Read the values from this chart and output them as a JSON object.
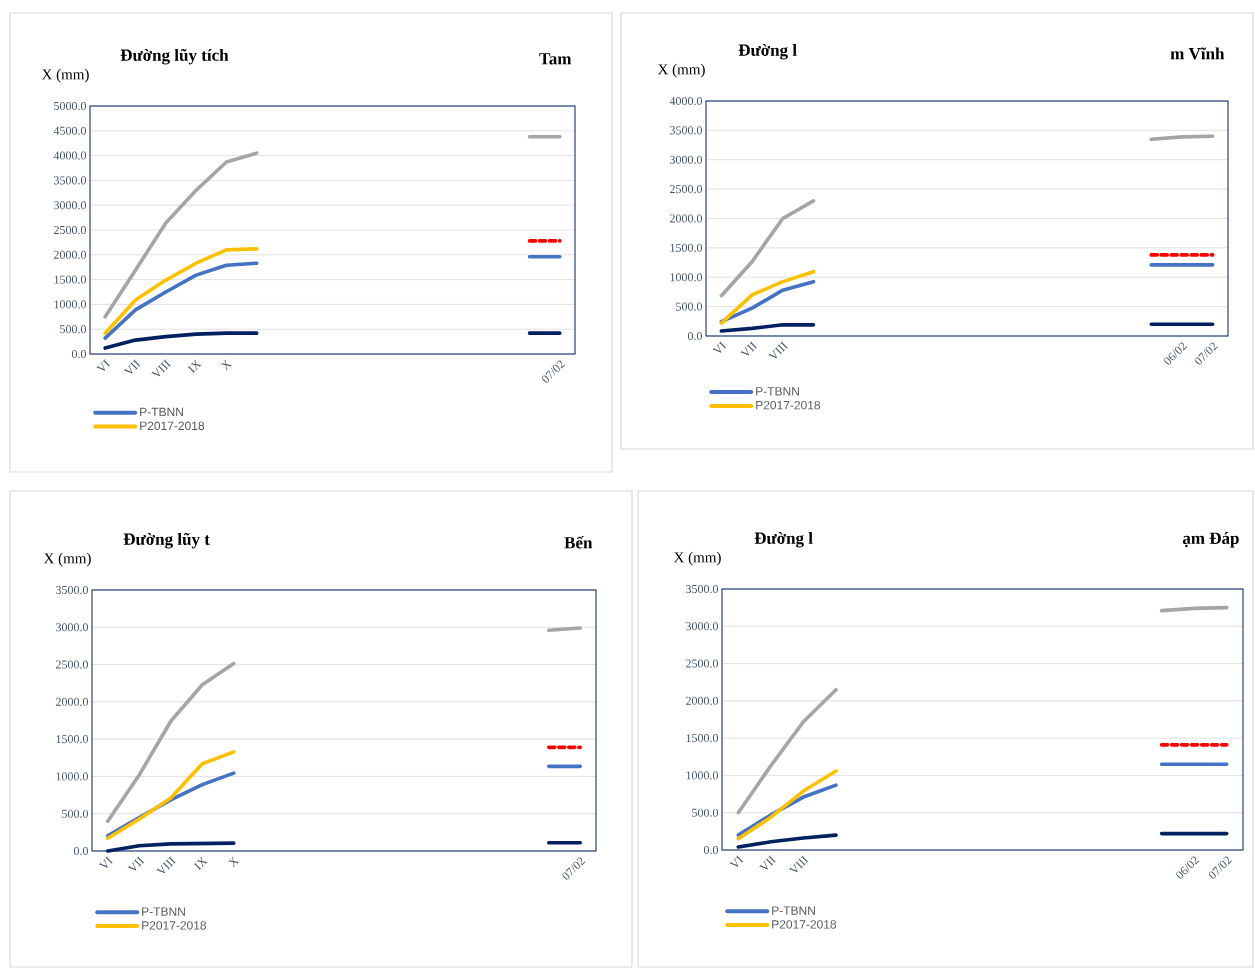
{
  "chart_data": [
    {
      "type": "line",
      "title": "Đường lũy tích",
      "ylabel": "X (mm)",
      "annotations": [
        "Tam"
      ],
      "categories": [
        "VI",
        "VII",
        "VIII",
        "IX",
        "X",
        null,
        null,
        null,
        null,
        null,
        null,
        null,
        null,
        null,
        null,
        "07/02"
      ],
      "series": [
        {
          "name": "P-TBNN",
          "color": "#4472c4",
          "values": [
            320,
            890,
            1250,
            1590,
            1790,
            1830,
            null,
            null,
            null,
            null,
            null,
            null,
            null,
            null,
            1960,
            1960
          ]
        },
        {
          "color": "#a5a5a5",
          "values": [
            750,
            1690,
            2640,
            3300,
            3870,
            4050,
            null,
            null,
            null,
            null,
            null,
            null,
            null,
            null,
            4380,
            4380
          ]
        },
        {
          "name": "P2017-2018",
          "color": "#ffc000",
          "values": [
            420,
            1090,
            1490,
            1830,
            2100,
            2120,
            null,
            null,
            null,
            null,
            null,
            null,
            null,
            null,
            null,
            null
          ]
        },
        {
          "color": "#ff0000",
          "line_style": "dashed",
          "values": [
            null,
            null,
            null,
            null,
            null,
            null,
            null,
            null,
            null,
            null,
            null,
            null,
            null,
            null,
            2280,
            2280
          ]
        },
        {
          "color": "#002060",
          "values": [
            120,
            280,
            350,
            400,
            420,
            420,
            null,
            null,
            null,
            null,
            null,
            null,
            null,
            null,
            420,
            420
          ]
        }
      ],
      "ylim": [
        0,
        5000
      ],
      "yticks": [
        {
          "value": 0,
          "label": "0.0"
        },
        {
          "value": 500,
          "label": "500.0"
        },
        {
          "value": 1000,
          "label": "1000.0"
        },
        {
          "value": 1500,
          "label": "1500.0"
        },
        {
          "value": 2000,
          "label": "2000.0"
        },
        {
          "value": 2500,
          "label": "2500.0"
        },
        {
          "value": 3000,
          "label": "3000.0"
        },
        {
          "value": 3500,
          "label": "3500.0"
        },
        {
          "value": 4000,
          "label": "4000.0"
        },
        {
          "value": 4500,
          "label": "4500.0"
        },
        {
          "value": 5000,
          "label": "5000.0"
        }
      ],
      "grid": "y",
      "legend": "bottom"
    },
    {
      "type": "line",
      "title": "Đường l",
      "ylabel": "X (mm)",
      "annotations": [
        "m Vĩnh"
      ],
      "categories": [
        "VI",
        "VII",
        "VIII",
        null,
        null,
        null,
        null,
        null,
        null,
        null,
        null,
        null,
        null,
        null,
        null,
        "06/02",
        "07/02"
      ],
      "series": [
        {
          "name": "P-TBNN",
          "color": "#4472c4",
          "values": [
            245,
            475,
            780,
            925,
            null,
            null,
            null,
            null,
            null,
            null,
            null,
            null,
            null,
            null,
            1210,
            1210,
            1210
          ]
        },
        {
          "color": "#a5a5a5",
          "values": [
            686,
            1265,
            2000,
            2300,
            null,
            null,
            null,
            null,
            null,
            null,
            null,
            null,
            null,
            null,
            3350,
            3390,
            3400
          ]
        },
        {
          "name": "P2017-2018",
          "color": "#ffc000",
          "values": [
            220,
            700,
            925,
            1095,
            null,
            null,
            null,
            null,
            null,
            null,
            null,
            null,
            null,
            null,
            null,
            null,
            null
          ]
        },
        {
          "color": "#ff0000",
          "line_style": "dashed",
          "values": [
            null,
            null,
            null,
            null,
            null,
            null,
            null,
            null,
            null,
            null,
            null,
            null,
            null,
            null,
            1380,
            1380,
            1380
          ]
        },
        {
          "color": "#002060",
          "values": [
            85,
            130,
            190,
            190,
            null,
            null,
            null,
            null,
            null,
            null,
            null,
            null,
            null,
            null,
            200,
            200,
            200
          ]
        }
      ],
      "ylim": [
        0,
        4000
      ],
      "yticks": [
        {
          "value": 0,
          "label": "0.0"
        },
        {
          "value": 500,
          "label": "500.0"
        },
        {
          "value": 1000,
          "label": "1000.0"
        },
        {
          "value": 1500,
          "label": "1500.0"
        },
        {
          "value": 2000,
          "label": "2000.0"
        },
        {
          "value": 2500,
          "label": "2500.0"
        },
        {
          "value": 3000,
          "label": "3000.0"
        },
        {
          "value": 3500,
          "label": "3500.0"
        },
        {
          "value": 4000,
          "label": "4000.0"
        }
      ],
      "grid": "y",
      "legend": "bottom"
    },
    {
      "type": "line",
      "title": "Đường lũy t",
      "ylabel": "X (mm)",
      "annotations": [
        "Bến"
      ],
      "categories": [
        "VI",
        "VII",
        "VIII",
        "IX",
        "X",
        null,
        null,
        null,
        null,
        null,
        null,
        null,
        null,
        null,
        null,
        "07/02"
      ],
      "series": [
        {
          "name": "P-TBNN",
          "color": "#4472c4",
          "values": [
            205,
            450,
            685,
            890,
            1045,
            null,
            null,
            null,
            null,
            null,
            null,
            null,
            null,
            null,
            1135,
            1135
          ]
        },
        {
          "color": "#a5a5a5",
          "values": [
            400,
            1020,
            1740,
            2230,
            2515,
            null,
            null,
            null,
            null,
            null,
            null,
            null,
            null,
            null,
            2960,
            2990
          ]
        },
        {
          "name": "P2017-2018",
          "color": "#ffc000",
          "values": [
            170,
            430,
            710,
            1170,
            1330,
            null,
            null,
            null,
            null,
            null,
            null,
            null,
            null,
            null,
            null,
            null
          ]
        },
        {
          "color": "#ff0000",
          "line_style": "dashed",
          "values": [
            null,
            null,
            null,
            null,
            null,
            null,
            null,
            null,
            null,
            null,
            null,
            null,
            null,
            null,
            1390,
            1390
          ]
        },
        {
          "color": "#002060",
          "values": [
            0,
            70,
            95,
            100,
            105,
            null,
            null,
            null,
            null,
            null,
            null,
            null,
            null,
            null,
            110,
            110
          ]
        }
      ],
      "ylim": [
        0,
        3500
      ],
      "yticks": [
        {
          "value": 0,
          "label": "0.0"
        },
        {
          "value": 500,
          "label": "500.0"
        },
        {
          "value": 1000,
          "label": "1000.0"
        },
        {
          "value": 1500,
          "label": "1500.0"
        },
        {
          "value": 2000,
          "label": "2000.0"
        },
        {
          "value": 2500,
          "label": "2500.0"
        },
        {
          "value": 3000,
          "label": "3000.0"
        },
        {
          "value": 3500,
          "label": "3500.0"
        }
      ],
      "grid": "y",
      "legend": "bottom"
    },
    {
      "type": "line",
      "title": "Đường l",
      "ylabel": "X (mm)",
      "annotations": [
        "ạm Đáp"
      ],
      "categories": [
        "VI",
        "VII",
        "VIII",
        null,
        null,
        null,
        null,
        null,
        null,
        null,
        null,
        null,
        null,
        null,
        "06/02",
        "07/02"
      ],
      "series": [
        {
          "name": "P-TBNN",
          "color": "#4472c4",
          "values": [
            200,
            470,
            710,
            870,
            null,
            null,
            null,
            null,
            null,
            null,
            null,
            null,
            null,
            1150,
            1150,
            1150
          ]
        },
        {
          "color": "#a5a5a5",
          "values": [
            500,
            1130,
            1720,
            2150,
            null,
            null,
            null,
            null,
            null,
            null,
            null,
            null,
            null,
            3210,
            3240,
            3250
          ]
        },
        {
          "name": "P2017-2018",
          "color": "#ffc000",
          "values": [
            150,
            440,
            790,
            1060,
            null,
            null,
            null,
            null,
            null,
            null,
            null,
            null,
            null,
            null,
            null,
            null
          ]
        },
        {
          "color": "#ff0000",
          "line_style": "dashed",
          "values": [
            null,
            null,
            null,
            null,
            null,
            null,
            null,
            null,
            null,
            null,
            null,
            null,
            null,
            1410,
            1410,
            1410
          ]
        },
        {
          "color": "#002060",
          "values": [
            40,
            110,
            160,
            200,
            null,
            null,
            null,
            null,
            null,
            null,
            null,
            null,
            null,
            220,
            220,
            220
          ]
        }
      ],
      "ylim": [
        0,
        3500
      ],
      "yticks": [
        {
          "value": 0,
          "label": "0.0"
        },
        {
          "value": 500,
          "label": "500.0"
        },
        {
          "value": 1000,
          "label": "1000.0"
        },
        {
          "value": 1500,
          "label": "1500.0"
        },
        {
          "value": 2000,
          "label": "2000.0"
        },
        {
          "value": 2500,
          "label": "2500.0"
        },
        {
          "value": 3000,
          "label": "3000.0"
        },
        {
          "value": 3500,
          "label": "3500.0"
        }
      ],
      "grid": "y",
      "legend": "bottom"
    }
  ]
}
